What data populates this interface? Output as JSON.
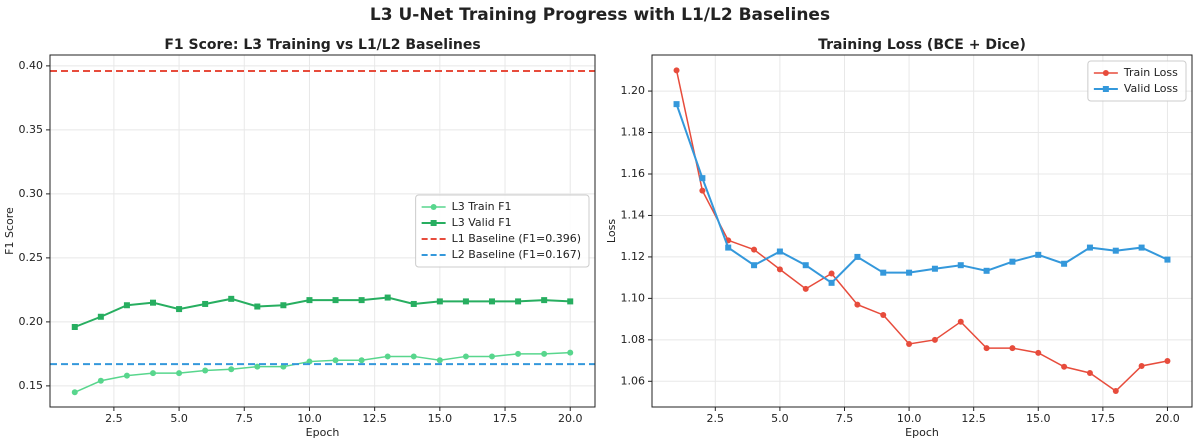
{
  "title": "L3 U-Net Training Progress with L1/L2 Baselines",
  "chart_data": [
    {
      "type": "line",
      "title": "F1 Score: L3 Training vs L1/L2 Baselines",
      "x_label": "Epoch",
      "y_label": "F1 Score",
      "x": [
        1,
        2,
        3,
        4,
        5,
        6,
        7,
        8,
        9,
        10,
        11,
        12,
        13,
        14,
        15,
        16,
        17,
        18,
        19,
        20
      ],
      "xlim": [
        0.05,
        20.95
      ],
      "xticks": [
        2.5,
        {
          "value": 5,
          "label": "5.0"
        },
        7.5,
        {
          "value": 10,
          "label": "10.0"
        },
        12.5,
        {
          "value": 15,
          "label": "15.0"
        },
        17.5,
        {
          "value": 20,
          "label": "20.0"
        }
      ],
      "ylim": [
        0.1335,
        0.4085
      ],
      "yticks": [
        0.15,
        {
          "value": 0.2,
          "label": "0.20"
        },
        0.25,
        {
          "value": 0.3,
          "label": "0.30"
        },
        0.35,
        {
          "value": 0.4,
          "label": "0.40"
        }
      ],
      "grid": true,
      "legend": "center right",
      "series": [
        {
          "name": "L3 Train F1",
          "color": "#58d68d",
          "marker": "circle",
          "values": [
            0.145,
            0.154,
            0.158,
            0.16,
            0.16,
            0.162,
            0.163,
            0.165,
            0.165,
            0.169,
            0.17,
            0.17,
            0.173,
            0.173,
            0.17,
            0.173,
            0.173,
            0.175,
            0.175,
            0.176
          ]
        },
        {
          "name": "L3 Valid F1",
          "color": "#27ae60",
          "marker": "square",
          "values": [
            0.196,
            0.204,
            0.213,
            0.215,
            0.21,
            0.214,
            0.218,
            0.212,
            0.213,
            0.217,
            0.217,
            0.217,
            0.219,
            0.214,
            0.216,
            0.216,
            0.216,
            0.216,
            0.217,
            0.216
          ]
        }
      ],
      "hlines": [
        {
          "name": "L1 Baseline (F1=0.396)",
          "color": "#e74c3c",
          "value": 0.396
        },
        {
          "name": "L2 Baseline (F1=0.167)",
          "color": "#3498db",
          "value": 0.167
        }
      ]
    },
    {
      "type": "line",
      "title": "Training Loss (BCE + Dice)",
      "x_label": "Epoch",
      "y_label": "Loss",
      "x": [
        1,
        2,
        3,
        4,
        5,
        6,
        7,
        8,
        9,
        10,
        11,
        12,
        13,
        14,
        15,
        16,
        17,
        18,
        19,
        20
      ],
      "xlim": [
        0.05,
        20.95
      ],
      "xticks": [
        2.5,
        {
          "value": 5,
          "label": "5.0"
        },
        7.5,
        {
          "value": 10,
          "label": "10.0"
        },
        12.5,
        {
          "value": 15,
          "label": "15.0"
        },
        17.5,
        {
          "value": 20,
          "label": "20.0"
        }
      ],
      "ylim": [
        1.0476,
        1.2174
      ],
      "yticks": [
        1.06,
        1.08,
        {
          "value": 1.1,
          "label": "1.10"
        },
        1.12,
        1.14,
        1.16,
        1.18,
        {
          "value": 1.2,
          "label": "1.20"
        }
      ],
      "grid": true,
      "legend": "upper right",
      "series": [
        {
          "name": "Train Loss",
          "color": "#e74c3c",
          "marker": "circle",
          "values": [
            1.21,
            1.152,
            1.128,
            1.1235,
            1.114,
            1.1046,
            1.112,
            1.097,
            1.092,
            1.078,
            1.08,
            1.0887,
            1.076,
            1.076,
            1.0737,
            1.067,
            1.064,
            1.0553,
            1.0674,
            1.0698
          ]
        },
        {
          "name": "Valid Loss",
          "color": "#3498db",
          "marker": "square",
          "values": [
            1.1937,
            1.158,
            1.1245,
            1.116,
            1.1226,
            1.116,
            1.1075,
            1.12,
            1.1124,
            1.1124,
            1.1143,
            1.116,
            1.1133,
            1.1177,
            1.121,
            1.1167,
            1.1245,
            1.123,
            1.1245,
            1.1187
          ]
        }
      ]
    }
  ]
}
